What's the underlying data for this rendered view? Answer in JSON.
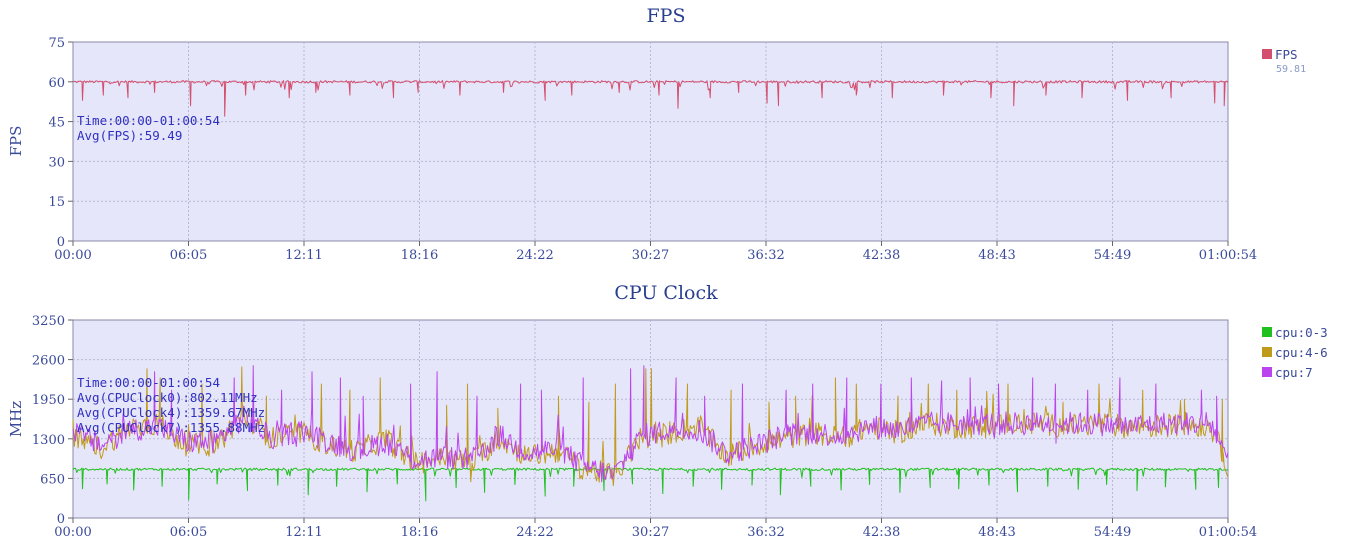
{
  "chart_data": [
    {
      "type": "line",
      "title": "FPS",
      "ylabel": "FPS",
      "xlabel": "",
      "ylim": [
        0,
        75
      ],
      "yticks": [
        "0",
        "15",
        "30",
        "45",
        "60",
        "75"
      ],
      "xticks": [
        "00:00",
        "06:05",
        "12:11",
        "18:16",
        "24:22",
        "30:27",
        "36:32",
        "42:38",
        "48:43",
        "54:49",
        "01:00:54"
      ],
      "grid": true,
      "legend_position": "right",
      "annotations": [
        "Time:00:00-01:00:54",
        "Avg(FPS):59.49"
      ],
      "series": [
        {
          "name": "FPS",
          "legend_value": "59.81",
          "color": "#d44f6e",
          "base": 60,
          "dips": [
            [
              0.5,
              53
            ],
            [
              1.6,
              55
            ],
            [
              2.9,
              54
            ],
            [
              4.3,
              56
            ],
            [
              6.2,
              51
            ],
            [
              8.0,
              47
            ],
            [
              9.1,
              55
            ],
            [
              11.4,
              54
            ],
            [
              12.8,
              56
            ],
            [
              14.6,
              55
            ],
            [
              16.9,
              54
            ],
            [
              18.2,
              56
            ],
            [
              20.4,
              55
            ],
            [
              22.7,
              56
            ],
            [
              24.9,
              53
            ],
            [
              26.3,
              55
            ],
            [
              28.8,
              56
            ],
            [
              30.9,
              55
            ],
            [
              31.9,
              50
            ],
            [
              33.6,
              54
            ],
            [
              35.1,
              56
            ],
            [
              36.6,
              52
            ],
            [
              37.2,
              51
            ],
            [
              39.5,
              54
            ],
            [
              41.3,
              55
            ],
            [
              43.2,
              54
            ],
            [
              45.9,
              55
            ],
            [
              48.4,
              54
            ],
            [
              49.6,
              51
            ],
            [
              51.3,
              55
            ],
            [
              53.2,
              54
            ],
            [
              55.6,
              53
            ],
            [
              57.9,
              54
            ],
            [
              60.2,
              52
            ],
            [
              60.7,
              51
            ]
          ]
        }
      ]
    },
    {
      "type": "line",
      "title": "CPU Clock",
      "ylabel": "MHz",
      "xlabel": "",
      "ylim": [
        0,
        3250
      ],
      "yticks": [
        "0",
        "650",
        "1300",
        "1950",
        "2600",
        "3250"
      ],
      "xticks": [
        "00:00",
        "06:05",
        "12:11",
        "18:16",
        "24:22",
        "30:27",
        "36:32",
        "42:38",
        "48:43",
        "54:49",
        "01:00:54"
      ],
      "grid": true,
      "legend_position": "right",
      "annotations": [
        "Time:00:00-01:00:54",
        "Avg(CPUClock0):802.11MHz",
        "Avg(CPUClock4):1359.67MHz",
        "Avg(CPUClock7):1355.88MHz"
      ],
      "series": [
        {
          "name": "cpu:0-3",
          "color": "#1fc01f",
          "base": 800,
          "dips": [
            [
              0.5,
              480
            ],
            [
              1.8,
              560
            ],
            [
              3.2,
              460
            ],
            [
              4.7,
              520
            ],
            [
              6.1,
              300
            ],
            [
              7.6,
              560
            ],
            [
              9.2,
              450
            ],
            [
              10.8,
              540
            ],
            [
              12.4,
              380
            ],
            [
              13.9,
              520
            ],
            [
              15.5,
              430
            ],
            [
              17.1,
              560
            ],
            [
              18.6,
              280
            ],
            [
              20.2,
              500
            ],
            [
              21.7,
              420
            ],
            [
              23.3,
              550
            ],
            [
              24.9,
              360
            ],
            [
              26.4,
              520
            ],
            [
              28.0,
              450
            ],
            [
              29.5,
              560
            ],
            [
              31.1,
              400
            ],
            [
              32.7,
              520
            ],
            [
              34.2,
              470
            ],
            [
              35.8,
              540
            ],
            [
              37.3,
              380
            ],
            [
              38.9,
              520
            ],
            [
              40.5,
              460
            ],
            [
              42.0,
              550
            ],
            [
              43.6,
              420
            ],
            [
              45.2,
              500
            ],
            [
              46.7,
              480
            ],
            [
              48.3,
              540
            ],
            [
              49.8,
              430
            ],
            [
              51.4,
              520
            ],
            [
              53.0,
              470
            ],
            [
              54.5,
              550
            ],
            [
              56.1,
              450
            ],
            [
              57.6,
              510
            ],
            [
              59.2,
              470
            ],
            [
              60.4,
              500
            ]
          ]
        },
        {
          "name": "cpu:4-6",
          "color": "#c09a1b",
          "keys": [
            [
              0,
              1300
            ],
            [
              1.5,
              1150
            ],
            [
              3,
              1500
            ],
            [
              4.5,
              1550
            ],
            [
              6,
              1200
            ],
            [
              7.5,
              1200
            ],
            [
              9,
              1700
            ],
            [
              10.5,
              1300
            ],
            [
              12,
              1400
            ],
            [
              13.5,
              1200
            ],
            [
              15,
              1100
            ],
            [
              16.5,
              1300
            ],
            [
              18,
              900
            ],
            [
              19.5,
              1000
            ],
            [
              21,
              900
            ],
            [
              22.5,
              1300
            ],
            [
              24,
              1000
            ],
            [
              25.5,
              1100
            ],
            [
              27,
              800
            ],
            [
              28.5,
              700
            ],
            [
              30,
              1300
            ],
            [
              31.5,
              1400
            ],
            [
              33,
              1500
            ],
            [
              34.5,
              1000
            ],
            [
              36,
              1200
            ],
            [
              37.5,
              1300
            ],
            [
              39,
              1400
            ],
            [
              40.5,
              1300
            ],
            [
              42,
              1500
            ],
            [
              43.5,
              1400
            ],
            [
              45,
              1550
            ],
            [
              46.5,
              1500
            ],
            [
              48,
              1500
            ],
            [
              49.5,
              1550
            ],
            [
              51,
              1550
            ],
            [
              52.5,
              1500
            ],
            [
              54,
              1550
            ],
            [
              55.5,
              1500
            ],
            [
              57,
              1500
            ],
            [
              58.5,
              1550
            ],
            [
              60,
              1500
            ],
            [
              60.9,
              850
            ]
          ],
          "spikes": [
            [
              3.9,
              2450
            ],
            [
              4.6,
              2300
            ],
            [
              6.8,
              2200
            ],
            [
              8.9,
              2480
            ],
            [
              10.2,
              2000
            ],
            [
              13.1,
              2200
            ],
            [
              14.6,
              2100
            ],
            [
              16.2,
              2300
            ],
            [
              19.7,
              1850
            ],
            [
              20.8,
              2200
            ],
            [
              22.4,
              1800
            ],
            [
              25.6,
              2000
            ],
            [
              27.2,
              1900
            ],
            [
              28.6,
              2200
            ],
            [
              30.2,
              2450
            ],
            [
              30.5,
              2450
            ],
            [
              32.4,
              2200
            ],
            [
              34.7,
              2100
            ],
            [
              36.7,
              1900
            ],
            [
              38.1,
              2000
            ],
            [
              40.2,
              2300
            ],
            [
              41.3,
              2200
            ],
            [
              43.5,
              2000
            ],
            [
              45.1,
              2200
            ],
            [
              46.6,
              2100
            ],
            [
              48.1,
              1800
            ],
            [
              49.3,
              2200
            ],
            [
              52.2,
              1900
            ],
            [
              54.1,
              2200
            ],
            [
              56.4,
              2100
            ],
            [
              58.6,
              1950
            ],
            [
              60.6,
              1950
            ]
          ]
        },
        {
          "name": "cpu:7",
          "color": "#bb44ee",
          "keys": [
            [
              0,
              1400
            ],
            [
              1.5,
              1200
            ],
            [
              3,
              1450
            ],
            [
              4.5,
              1500
            ],
            [
              6,
              1250
            ],
            [
              7.5,
              1250
            ],
            [
              9,
              1650
            ],
            [
              10.5,
              1300
            ],
            [
              12,
              1450
            ],
            [
              13.5,
              1250
            ],
            [
              15,
              1100
            ],
            [
              16.5,
              1250
            ],
            [
              18,
              950
            ],
            [
              19.5,
              1000
            ],
            [
              21,
              950
            ],
            [
              22.5,
              1350
            ],
            [
              24,
              1050
            ],
            [
              25.5,
              1150
            ],
            [
              27,
              850
            ],
            [
              28.5,
              700
            ],
            [
              30,
              1350
            ],
            [
              31.5,
              1450
            ],
            [
              33,
              1450
            ],
            [
              34.5,
              1050
            ],
            [
              36,
              1200
            ],
            [
              37.5,
              1350
            ],
            [
              39,
              1400
            ],
            [
              40.5,
              1350
            ],
            [
              42,
              1500
            ],
            [
              43.5,
              1450
            ],
            [
              45,
              1550
            ],
            [
              46.5,
              1550
            ],
            [
              48,
              1550
            ],
            [
              49.5,
              1550
            ],
            [
              51,
              1550
            ],
            [
              52.5,
              1550
            ],
            [
              54,
              1550
            ],
            [
              55.5,
              1500
            ],
            [
              57,
              1550
            ],
            [
              58.5,
              1550
            ],
            [
              60,
              1550
            ],
            [
              60.9,
              900
            ]
          ],
          "spikes": [
            [
              4.3,
              2400
            ],
            [
              5.2,
              2100
            ],
            [
              8.5,
              2300
            ],
            [
              9.5,
              2500
            ],
            [
              11.0,
              2100
            ],
            [
              12.6,
              2400
            ],
            [
              14.1,
              2300
            ],
            [
              15.3,
              2000
            ],
            [
              17.8,
              2200
            ],
            [
              19.2,
              2400
            ],
            [
              21.3,
              2000
            ],
            [
              23.6,
              2200
            ],
            [
              24.7,
              2100
            ],
            [
              26.9,
              2300
            ],
            [
              29.4,
              2450
            ],
            [
              30.1,
              2500
            ],
            [
              31.8,
              2300
            ],
            [
              33.3,
              2000
            ],
            [
              35.3,
              2200
            ],
            [
              37.6,
              2100
            ],
            [
              39.0,
              2200
            ],
            [
              40.8,
              2300
            ],
            [
              42.6,
              2200
            ],
            [
              44.2,
              2300
            ],
            [
              45.8,
              2250
            ],
            [
              47.3,
              2300
            ],
            [
              48.8,
              2200
            ],
            [
              50.6,
              2300
            ],
            [
              51.8,
              2200
            ],
            [
              53.5,
              2100
            ],
            [
              55.2,
              2300
            ],
            [
              57.1,
              2200
            ],
            [
              59.5,
              2100
            ],
            [
              60.3,
              2000
            ]
          ]
        }
      ]
    }
  ]
}
